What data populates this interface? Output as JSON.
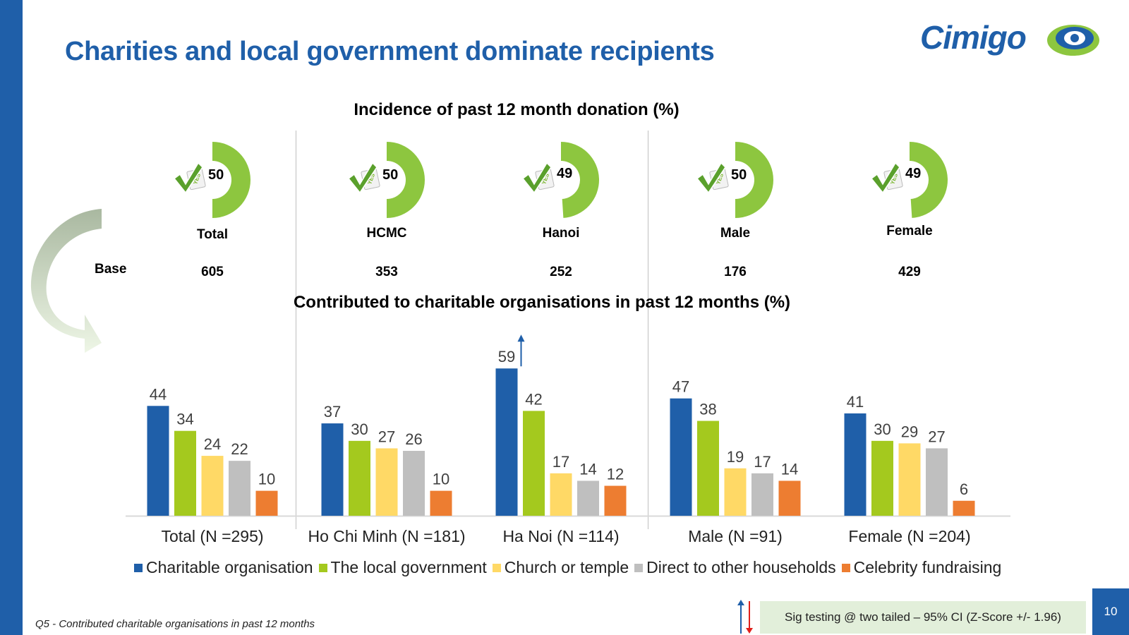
{
  "title": "Charities and local government dominate recipients",
  "logo": {
    "text": "Cimigo"
  },
  "colors": {
    "brand": "#1f5fa9",
    "green": "#8dc63f",
    "sigbox": "#e2efda"
  },
  "incidence": {
    "title": "Incidence of past 12 month donation (%)",
    "base_label": "Base",
    "icon": "yes-check-icon",
    "segments": [
      {
        "label": "Total",
        "value": "50",
        "base": "605"
      },
      {
        "label": "HCMC",
        "value": "50",
        "base": "353"
      },
      {
        "label": "Hanoi",
        "value": "49",
        "base": "252"
      },
      {
        "label": "Male",
        "value": "50",
        "base": "176"
      },
      {
        "label": "Female",
        "value": "49",
        "base": "429"
      }
    ]
  },
  "chart_data": {
    "type": "bar",
    "title": "Contributed to charitable organisations in past 12 months (%)",
    "xlabel": "",
    "ylabel": "",
    "ylim": [
      0,
      65
    ],
    "grid": false,
    "legend": "bottom",
    "categories": [
      "Total (N =295)",
      "Ho Chi Minh (N =181)",
      "Ha Noi (N =114)",
      "Male (N =91)",
      "Female (N =204)"
    ],
    "series": [
      {
        "name": "Charitable organisation",
        "color": "#1f5fa9",
        "values": [
          44,
          37,
          59,
          47,
          41
        ]
      },
      {
        "name": "The local government",
        "color": "#a4c91e",
        "values": [
          34,
          30,
          42,
          38,
          30
        ]
      },
      {
        "name": "Church or temple",
        "color": "#ffd966",
        "values": [
          24,
          27,
          17,
          19,
          29
        ]
      },
      {
        "name": "Direct to other households",
        "color": "#bfbfbf",
        "values": [
          22,
          26,
          14,
          17,
          27
        ]
      },
      {
        "name": "Celebrity fundraising",
        "color": "#ed7d31",
        "values": [
          10,
          10,
          12,
          14,
          6
        ]
      }
    ],
    "annotations": [
      {
        "category": "Ha Noi (N =114)",
        "series": "Charitable organisation",
        "marker": "sig-up-arrow"
      }
    ]
  },
  "footnote": "Q5 - Contributed charitable organisations in past 12 months",
  "sig_testing": "Sig testing @ two tailed – 95% CI (Z-Score +/- 1.96)",
  "page_number": "10"
}
